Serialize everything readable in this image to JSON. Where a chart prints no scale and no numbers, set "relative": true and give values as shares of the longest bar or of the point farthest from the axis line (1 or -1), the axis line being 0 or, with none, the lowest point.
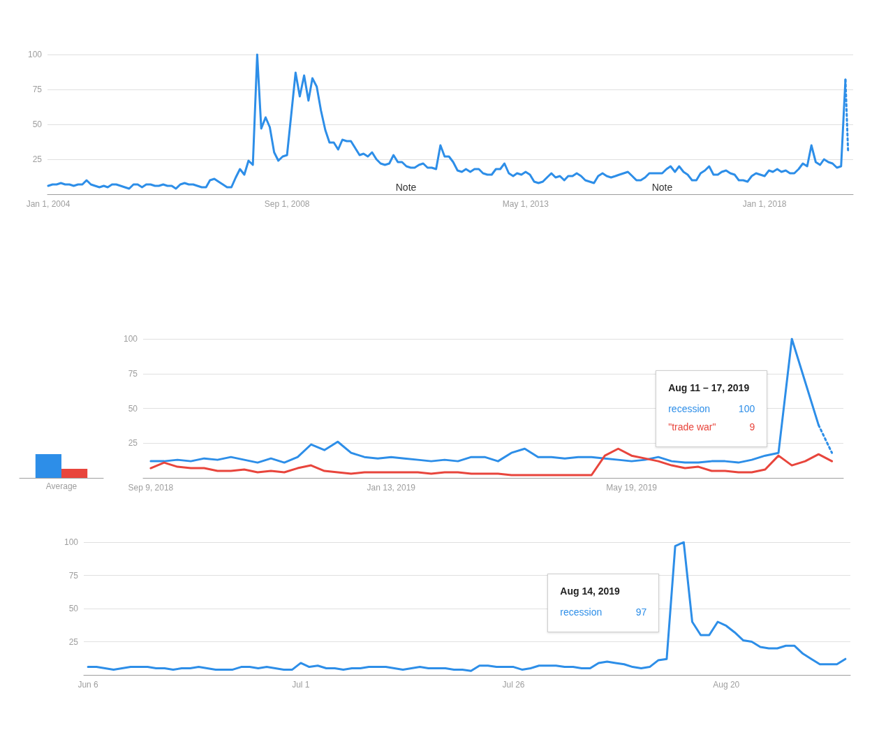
{
  "chart_data": [
    {
      "type": "line",
      "grid": "y",
      "marker": "none",
      "line_style": "solid",
      "xlim": [
        "2003-12-27",
        "2019-09-25"
      ],
      "ylim": [
        0,
        100
      ],
      "yticks": [
        25,
        50,
        75,
        100
      ],
      "xticks": [
        {
          "value": "2004-01-01",
          "label": "Jan 1, 2004"
        },
        {
          "value": "2008-09-01",
          "label": "Sep 1, 2008"
        },
        {
          "value": "2013-05-01",
          "label": "May 1, 2013"
        },
        {
          "value": "2018-01-01",
          "label": "Jan 1, 2018"
        }
      ],
      "x": [
        "2004-01",
        "2004-02",
        "2004-03",
        "2004-04",
        "2004-05",
        "2004-06",
        "2004-07",
        "2004-08",
        "2004-09",
        "2004-10",
        "2004-11",
        "2004-12",
        "2005-01",
        "2005-02",
        "2005-03",
        "2005-04",
        "2005-05",
        "2005-06",
        "2005-07",
        "2005-08",
        "2005-09",
        "2005-10",
        "2005-11",
        "2005-12",
        "2006-01",
        "2006-02",
        "2006-03",
        "2006-04",
        "2006-05",
        "2006-06",
        "2006-07",
        "2006-08",
        "2006-09",
        "2006-10",
        "2006-11",
        "2006-12",
        "2007-01",
        "2007-02",
        "2007-03",
        "2007-04",
        "2007-05",
        "2007-06",
        "2007-07",
        "2007-08",
        "2007-09",
        "2007-10",
        "2007-11",
        "2007-12",
        "2008-01",
        "2008-02",
        "2008-03",
        "2008-04",
        "2008-05",
        "2008-06",
        "2008-07",
        "2008-08",
        "2008-09",
        "2008-10",
        "2008-11",
        "2008-12",
        "2009-01",
        "2009-02",
        "2009-03",
        "2009-04",
        "2009-05",
        "2009-06",
        "2009-07",
        "2009-08",
        "2009-09",
        "2009-10",
        "2009-11",
        "2009-12",
        "2010-01",
        "2010-02",
        "2010-03",
        "2010-04",
        "2010-05",
        "2010-06",
        "2010-07",
        "2010-08",
        "2010-09",
        "2010-10",
        "2010-11",
        "2010-12",
        "2011-01",
        "2011-02",
        "2011-03",
        "2011-04",
        "2011-05",
        "2011-06",
        "2011-07",
        "2011-08",
        "2011-09",
        "2011-10",
        "2011-11",
        "2011-12",
        "2012-01",
        "2012-02",
        "2012-03",
        "2012-04",
        "2012-05",
        "2012-06",
        "2012-07",
        "2012-08",
        "2012-09",
        "2012-10",
        "2012-11",
        "2012-12",
        "2013-01",
        "2013-02",
        "2013-03",
        "2013-04",
        "2013-05",
        "2013-06",
        "2013-07",
        "2013-08",
        "2013-09",
        "2013-10",
        "2013-11",
        "2013-12",
        "2014-01",
        "2014-02",
        "2014-03",
        "2014-04",
        "2014-05",
        "2014-06",
        "2014-07",
        "2014-08",
        "2014-09",
        "2014-10",
        "2014-11",
        "2014-12",
        "2015-01",
        "2015-02",
        "2015-03",
        "2015-04",
        "2015-05",
        "2015-06",
        "2015-07",
        "2015-08",
        "2015-09",
        "2015-10",
        "2015-11",
        "2015-12",
        "2016-01",
        "2016-02",
        "2016-03",
        "2016-04",
        "2016-05",
        "2016-06",
        "2016-07",
        "2016-08",
        "2016-09",
        "2016-10",
        "2016-11",
        "2016-12",
        "2017-01",
        "2017-02",
        "2017-03",
        "2017-04",
        "2017-05",
        "2017-06",
        "2017-07",
        "2017-08",
        "2017-09",
        "2017-10",
        "2017-11",
        "2017-12",
        "2018-01",
        "2018-02",
        "2018-03",
        "2018-04",
        "2018-05",
        "2018-06",
        "2018-07",
        "2018-08",
        "2018-09",
        "2018-10",
        "2018-11",
        "2018-12",
        "2019-01",
        "2019-02",
        "2019-03",
        "2019-04",
        "2019-05",
        "2019-06",
        "2019-07",
        "2019-08"
      ],
      "series": [
        {
          "color": "#2d8ee8",
          "values": [
            6,
            7,
            7,
            8,
            7,
            7,
            6,
            7,
            7,
            10,
            7,
            6,
            5,
            6,
            5,
            7,
            7,
            6,
            5,
            4,
            7,
            7,
            5,
            7,
            7,
            6,
            6,
            7,
            6,
            6,
            4,
            7,
            8,
            7,
            7,
            6,
            5,
            5,
            10,
            11,
            9,
            7,
            5,
            5,
            12,
            18,
            14,
            24,
            21,
            100,
            47,
            55,
            48,
            30,
            24,
            27,
            28,
            57,
            87,
            70,
            85,
            67,
            83,
            77,
            60,
            46,
            37,
            37,
            32,
            39,
            38,
            38,
            33,
            28,
            29,
            27,
            30,
            25,
            22,
            21,
            22,
            28,
            23,
            23,
            20,
            19,
            19,
            21,
            22,
            19,
            19,
            18,
            35,
            27,
            27,
            23,
            17,
            16,
            18,
            16,
            18,
            18,
            15,
            14,
            14,
            18,
            18,
            22,
            15,
            13,
            15,
            14,
            16,
            14,
            9,
            8,
            9,
            12,
            15,
            12,
            13,
            10,
            13,
            13,
            15,
            13,
            10,
            9,
            8,
            13,
            15,
            13,
            12,
            13,
            14,
            15,
            16,
            13,
            10,
            10,
            12,
            15,
            15,
            15,
            15,
            18,
            20,
            16,
            20,
            16,
            14,
            10,
            10,
            15,
            17,
            20,
            14,
            14,
            16,
            17,
            15,
            14,
            10,
            10,
            9,
            13,
            15,
            14,
            13,
            17,
            16,
            18,
            16,
            17,
            15,
            15,
            18,
            22,
            20,
            35,
            23,
            21,
            25,
            23,
            22,
            19,
            20,
            82
          ]
        },
        {
          "color": "#2d8ee8",
          "line_style": "dotted",
          "x": [
            "2019-08-01",
            "2019-08-20"
          ],
          "values": [
            82,
            30
          ]
        }
      ],
      "annotations": [
        "Note",
        "Note"
      ]
    },
    {
      "type": "bar",
      "relative": true,
      "categories": [
        "Average"
      ],
      "series": [
        {
          "color": "#2d8ee8",
          "values": [
            1
          ]
        },
        {
          "color": "#e8453c",
          "values": [
            0.38
          ]
        }
      ]
    },
    {
      "type": "line",
      "grid": "y",
      "marker": "none",
      "line_style": "solid",
      "xlim": [
        "2018-09-05",
        "2019-09-07"
      ],
      "ylim": [
        0,
        100
      ],
      "yticks": [
        25,
        50,
        75,
        100
      ],
      "xticks": [
        {
          "value": "2018-09-09",
          "label": "Sep 9, 2018"
        },
        {
          "value": "2019-01-13",
          "label": "Jan 13, 2019"
        },
        {
          "value": "2019-05-19",
          "label": "May 19, 2019"
        }
      ],
      "x": [
        "2018-09-09",
        "2018-09-16",
        "2018-09-23",
        "2018-09-30",
        "2018-10-07",
        "2018-10-14",
        "2018-10-21",
        "2018-10-28",
        "2018-11-04",
        "2018-11-11",
        "2018-11-18",
        "2018-11-25",
        "2018-12-02",
        "2018-12-09",
        "2018-12-16",
        "2018-12-23",
        "2018-12-30",
        "2019-01-06",
        "2019-01-13",
        "2019-01-20",
        "2019-01-27",
        "2019-02-03",
        "2019-02-10",
        "2019-02-17",
        "2019-02-24",
        "2019-03-03",
        "2019-03-10",
        "2019-03-17",
        "2019-03-24",
        "2019-03-31",
        "2019-04-07",
        "2019-04-14",
        "2019-04-21",
        "2019-04-28",
        "2019-05-05",
        "2019-05-12",
        "2019-05-19",
        "2019-05-26",
        "2019-06-02",
        "2019-06-09",
        "2019-06-16",
        "2019-06-23",
        "2019-06-30",
        "2019-07-07",
        "2019-07-14",
        "2019-07-21",
        "2019-07-28",
        "2019-08-04",
        "2019-08-11",
        "2019-08-18",
        "2019-08-25",
        "2019-09-01"
      ],
      "series": [
        {
          "name": "recession",
          "color": "#2d8ee8",
          "values": [
            12,
            12,
            13,
            12,
            14,
            13,
            15,
            13,
            11,
            14,
            11,
            15,
            24,
            20,
            26,
            18,
            15,
            14,
            15,
            14,
            13,
            12,
            13,
            12,
            15,
            15,
            12,
            18,
            21,
            15,
            15,
            14,
            15,
            15,
            14,
            13,
            12,
            13,
            15,
            12,
            11,
            11,
            12,
            12,
            11,
            13,
            16,
            18,
            100,
            69,
            38,
            null
          ]
        },
        {
          "name": "\"trade war\"",
          "color": "#e8453c",
          "values": [
            7,
            11,
            8,
            7,
            7,
            5,
            5,
            6,
            4,
            5,
            4,
            7,
            9,
            5,
            4,
            3,
            4,
            4,
            4,
            4,
            4,
            3,
            4,
            4,
            3,
            3,
            3,
            2,
            2,
            2,
            2,
            2,
            2,
            2,
            16,
            21,
            16,
            14,
            12,
            9,
            7,
            8,
            5,
            5,
            4,
            4,
            6,
            16,
            9,
            12,
            17,
            12
          ]
        },
        {
          "color": "#2d8ee8",
          "line_style": "dotted",
          "x": [
            "2019-08-25",
            "2019-09-01"
          ],
          "values": [
            38,
            18
          ]
        }
      ],
      "annotations": [
        "Aug 11 – 17, 2019",
        "100",
        "9"
      ]
    },
    {
      "type": "line",
      "grid": "y",
      "marker": "none",
      "line_style": "solid",
      "xlim": [
        "2019-06-05T12:00",
        "2019-09-03T14:00"
      ],
      "ylim": [
        0,
        100
      ],
      "yticks": [
        25,
        50,
        75,
        100
      ],
      "xticks": [
        {
          "value": "2019-06-06",
          "label": "Jun 6"
        },
        {
          "value": "2019-07-01",
          "label": "Jul 1"
        },
        {
          "value": "2019-07-26",
          "label": "Jul 26"
        },
        {
          "value": "2019-08-20",
          "label": "Aug 20"
        }
      ],
      "x": [
        "2019-06-06",
        "2019-06-07",
        "2019-06-08",
        "2019-06-09",
        "2019-06-10",
        "2019-06-11",
        "2019-06-12",
        "2019-06-13",
        "2019-06-14",
        "2019-06-15",
        "2019-06-16",
        "2019-06-17",
        "2019-06-18",
        "2019-06-19",
        "2019-06-20",
        "2019-06-21",
        "2019-06-22",
        "2019-06-23",
        "2019-06-24",
        "2019-06-25",
        "2019-06-26",
        "2019-06-27",
        "2019-06-28",
        "2019-06-29",
        "2019-06-30",
        "2019-07-01",
        "2019-07-02",
        "2019-07-03",
        "2019-07-04",
        "2019-07-05",
        "2019-07-06",
        "2019-07-07",
        "2019-07-08",
        "2019-07-09",
        "2019-07-10",
        "2019-07-11",
        "2019-07-12",
        "2019-07-13",
        "2019-07-14",
        "2019-07-15",
        "2019-07-16",
        "2019-07-17",
        "2019-07-18",
        "2019-07-19",
        "2019-07-20",
        "2019-07-21",
        "2019-07-22",
        "2019-07-23",
        "2019-07-24",
        "2019-07-25",
        "2019-07-26",
        "2019-07-27",
        "2019-07-28",
        "2019-07-29",
        "2019-07-30",
        "2019-07-31",
        "2019-08-01",
        "2019-08-02",
        "2019-08-03",
        "2019-08-04",
        "2019-08-05",
        "2019-08-06",
        "2019-08-07",
        "2019-08-08",
        "2019-08-09",
        "2019-08-10",
        "2019-08-11",
        "2019-08-12",
        "2019-08-13",
        "2019-08-14",
        "2019-08-15",
        "2019-08-16",
        "2019-08-17",
        "2019-08-18",
        "2019-08-19",
        "2019-08-20",
        "2019-08-21",
        "2019-08-22",
        "2019-08-23",
        "2019-08-24",
        "2019-08-25",
        "2019-08-26",
        "2019-08-27",
        "2019-08-28",
        "2019-08-29",
        "2019-08-30",
        "2019-08-31",
        "2019-09-01",
        "2019-09-02",
        "2019-09-03"
      ],
      "series": [
        {
          "name": "recession",
          "color": "#2d8ee8",
          "values": [
            6,
            6,
            5,
            4,
            5,
            6,
            6,
            6,
            5,
            5,
            4,
            5,
            5,
            6,
            5,
            4,
            4,
            4,
            6,
            6,
            5,
            6,
            5,
            4,
            4,
            9,
            6,
            7,
            5,
            5,
            4,
            5,
            5,
            6,
            6,
            6,
            5,
            4,
            5,
            6,
            5,
            5,
            5,
            4,
            4,
            3,
            7,
            7,
            6,
            6,
            6,
            4,
            5,
            7,
            7,
            7,
            6,
            6,
            5,
            5,
            9,
            10,
            9,
            8,
            6,
            5,
            6,
            11,
            12,
            97,
            100,
            40,
            30,
            30,
            40,
            37,
            32,
            26,
            25,
            21,
            20,
            20,
            22,
            22,
            16,
            12,
            8,
            8,
            8,
            12
          ]
        }
      ],
      "annotations": [
        "Aug 14, 2019",
        "97"
      ]
    }
  ]
}
